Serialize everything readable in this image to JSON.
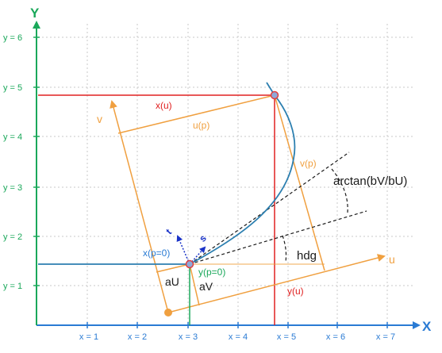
{
  "axes": {
    "x_axis_label": "X",
    "y_axis_label": "Y",
    "x_ticks": [
      "x = 1",
      "x = 2",
      "x = 3",
      "x = 4",
      "x = 5",
      "x = 6",
      "x = 7"
    ],
    "y_ticks": [
      "y = 1",
      "y = 2",
      "y = 3",
      "y = 4",
      "y = 5",
      "y = 6"
    ]
  },
  "labels": {
    "x_of_u": "x(u)",
    "u_of_p": "u(p)",
    "v_of_p": "v(p)",
    "v_axis": "v",
    "u_axis": "u",
    "arctan": "arctan(bV/bU)",
    "hdg": "hdg",
    "x_p0": "x(p=0)",
    "y_p0": "y(p=0)",
    "aU": "aU",
    "aV": "aV",
    "y_of_u": "y(u)",
    "s_vec": "s",
    "t_vec": "t"
  },
  "colors": {
    "axis": "#2a7bd4",
    "y_axis": "#1aa85a",
    "grid": "#c8c8c8",
    "orange": "#f0a040",
    "curve": "#2c7fb0",
    "red": "#e02020",
    "blue_vec": "#1a33c8",
    "point_fill": "#8fa8d8",
    "point_stroke": "#e04040",
    "text": "#1a1a1a"
  }
}
